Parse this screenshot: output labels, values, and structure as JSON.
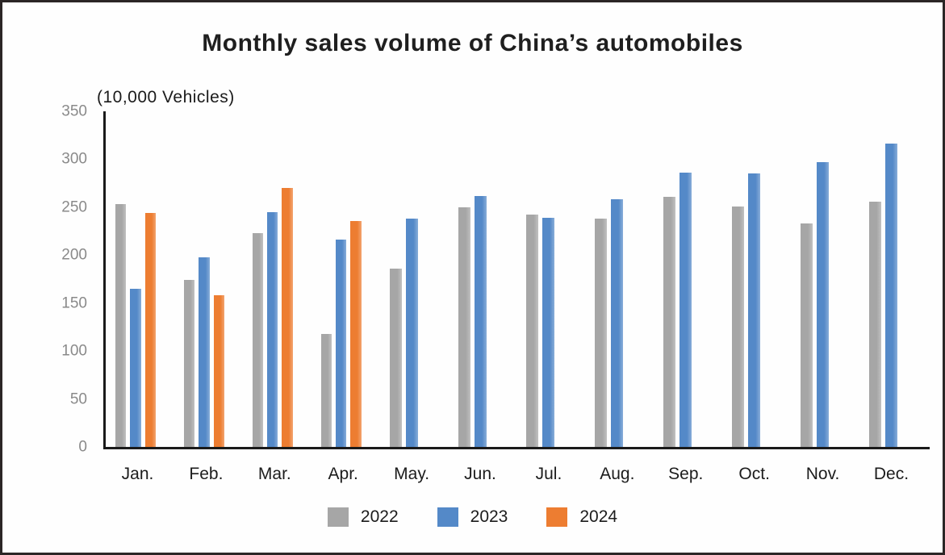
{
  "title": "Monthly sales volume of China’s automobiles",
  "unit_label": "(10,000 Vehicles)",
  "colors": {
    "series_2022": "#A6A6A6",
    "series_2023": "#5489C8",
    "series_2024": "#ED7D31",
    "axis": "#1A1A1A",
    "tick_label": "#8A8A8A",
    "border": "#2B2626"
  },
  "legend": [
    {
      "label": "2022",
      "color": "#A6A6A6"
    },
    {
      "label": "2023",
      "color": "#5489C8"
    },
    {
      "label": "2024",
      "color": "#ED7D31"
    }
  ],
  "chart_data": {
    "type": "bar",
    "title": "Monthly sales volume of China’s automobiles",
    "ylabel": "(10,000 Vehicles)",
    "xlabel": "",
    "categories": [
      "Jan.",
      "Feb.",
      "Mar.",
      "Apr.",
      "May.",
      "Jun.",
      "Jul.",
      "Aug.",
      "Sep.",
      "Oct.",
      "Nov.",
      "Dec."
    ],
    "series": [
      {
        "name": "2022",
        "color": "#A6A6A6",
        "values": [
          253,
          174,
          223,
          118,
          186,
          250,
          242,
          238,
          261,
          251,
          233,
          256
        ]
      },
      {
        "name": "2023",
        "color": "#5489C8",
        "values": [
          165,
          198,
          245,
          216,
          238,
          262,
          239,
          258,
          286,
          285,
          297,
          316
        ]
      },
      {
        "name": "2024",
        "color": "#ED7D31",
        "values": [
          244,
          158,
          270,
          236,
          null,
          null,
          null,
          null,
          null,
          null,
          null,
          null
        ]
      }
    ],
    "ylim": [
      0,
      350
    ],
    "yticks": [
      0,
      50,
      100,
      150,
      200,
      250,
      300,
      350
    ],
    "grid": false,
    "legend_position": "bottom"
  }
}
